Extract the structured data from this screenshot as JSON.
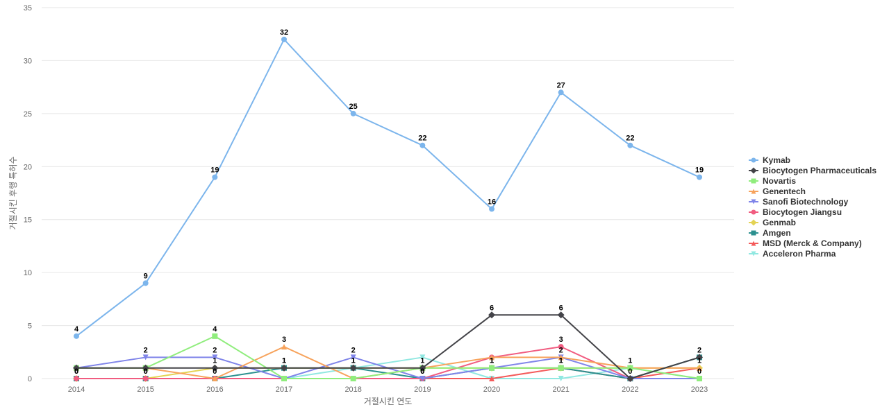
{
  "chart_data": {
    "type": "line",
    "title": "",
    "xlabel": "거절시킨 연도",
    "ylabel": "거절시킨 후행 특허수",
    "ylim": [
      0,
      35
    ],
    "yticks": [
      0,
      5,
      10,
      15,
      20,
      25,
      30,
      35
    ],
    "x": [
      "2014",
      "2015",
      "2016",
      "2017",
      "2018",
      "2019",
      "2020",
      "2021",
      "2022",
      "2023"
    ],
    "grid": true,
    "legend": "right",
    "series": [
      {
        "name": "Kymab",
        "color": "#7cb5ec",
        "marker": "circle",
        "values": [
          4,
          9,
          19,
          32,
          25,
          22,
          16,
          27,
          22,
          19
        ]
      },
      {
        "name": "Biocytogen Pharmaceuticals",
        "color": "#434348",
        "marker": "diamond",
        "values": [
          1,
          1,
          1,
          1,
          1,
          1,
          6,
          6,
          0,
          2
        ]
      },
      {
        "name": "Novartis",
        "color": "#90ed7d",
        "marker": "square",
        "values": [
          1,
          1,
          4,
          0,
          0,
          1,
          1,
          1,
          1,
          0
        ]
      },
      {
        "name": "Genentech",
        "color": "#f7a35c",
        "marker": "triangle",
        "values": [
          1,
          1,
          0,
          3,
          0,
          1,
          2,
          2,
          1,
          1
        ]
      },
      {
        "name": "Sanofi Biotechnology",
        "color": "#8085e9",
        "marker": "triangle-down",
        "values": [
          1,
          2,
          2,
          0,
          2,
          0,
          1,
          2,
          0,
          0
        ]
      },
      {
        "name": "Biocytogen Jiangsu",
        "color": "#f15c80",
        "marker": "circle",
        "values": [
          0,
          0,
          0,
          0,
          0,
          0,
          2,
          3,
          0,
          0
        ]
      },
      {
        "name": "Genmab",
        "color": "#e4d354",
        "marker": "diamond",
        "values": [
          0,
          0,
          1,
          1,
          1,
          1,
          1,
          1,
          1,
          1
        ]
      },
      {
        "name": "Amgen",
        "color": "#2b908f",
        "marker": "square",
        "values": [
          0,
          0,
          0,
          1,
          1,
          0,
          1,
          1,
          0,
          2
        ]
      },
      {
        "name": "MSD (Merck & Company)",
        "color": "#f45b5b",
        "marker": "triangle",
        "values": [
          0,
          0,
          0,
          0,
          0,
          0,
          0,
          1,
          0,
          1
        ]
      },
      {
        "name": "Acceleron Pharma",
        "color": "#91e8e1",
        "marker": "triangle-down",
        "values": [
          0,
          0,
          0,
          0,
          1,
          2,
          0,
          0,
          1,
          0
        ]
      }
    ],
    "data_labels": [
      {
        "series": 0,
        "points": [
          0,
          1,
          2,
          3,
          4,
          5,
          6,
          7,
          8,
          9
        ]
      },
      {
        "series": 1,
        "points": [
          6,
          7
        ]
      },
      {
        "series": 2,
        "points": [
          2
        ]
      },
      {
        "series": 3,
        "points": [
          3
        ]
      },
      {
        "series": 4,
        "points": [
          1,
          2,
          4,
          5,
          6,
          7,
          9
        ]
      },
      {
        "series": 5,
        "points": [
          7
        ]
      },
      {
        "series": 6,
        "points": [
          0,
          1,
          2,
          3,
          4,
          5,
          6,
          7,
          8,
          9
        ]
      },
      {
        "series": 7,
        "points": [
          0,
          1,
          2,
          3,
          4,
          5,
          6,
          7,
          8,
          9
        ]
      }
    ]
  }
}
